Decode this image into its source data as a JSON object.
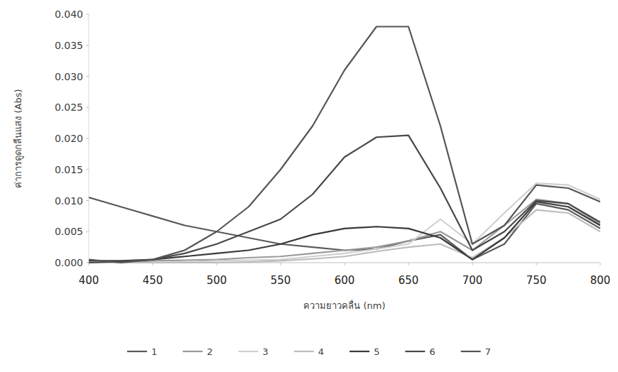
{
  "chart_data": {
    "type": "line",
    "x_label": "ความยาวคลื่น (nm)",
    "y_label": "ค่าการดูดกลืนแสง (Abs)",
    "x": [
      400,
      425,
      450,
      475,
      500,
      525,
      550,
      575,
      600,
      625,
      650,
      675,
      700,
      725,
      750,
      775,
      800
    ],
    "xlim": [
      400,
      800
    ],
    "xticks": [
      400,
      450,
      500,
      550,
      600,
      650,
      700,
      750,
      800
    ],
    "ylim": [
      0,
      0.04
    ],
    "yticks": [
      {
        "value": 0,
        "label": "0.000"
      },
      {
        "value": 0.005,
        "label": "0.005"
      },
      {
        "value": 0.01,
        "label": "0.010"
      },
      {
        "value": 0.015,
        "label": "0.015"
      },
      {
        "value": 0.02,
        "label": "0.020"
      },
      {
        "value": 0.025,
        "label": "0.025"
      },
      {
        "value": 0.03,
        "label": "0.030"
      },
      {
        "value": 0.035,
        "label": "0.035"
      },
      {
        "value": 0.04,
        "label": "0.040"
      }
    ],
    "grid": false,
    "legend": "bottom",
    "series": [
      {
        "name": "1",
        "color": "#5a5a5a",
        "values": [
          0.0105,
          0.009,
          0.0075,
          0.006,
          0.005,
          0.004,
          0.003,
          0.0025,
          0.002,
          0.0022,
          0.0035,
          0.0045,
          0.0005,
          0.003,
          0.0095,
          0.0085,
          0.0055
        ]
      },
      {
        "name": "2",
        "color": "#9a9a9a",
        "values": [
          0,
          0,
          0.0003,
          0.0004,
          0.0005,
          0.0008,
          0.001,
          0.0015,
          0.002,
          0.0025,
          0.0035,
          0.005,
          0.002,
          0.006,
          0.0102,
          0.0095,
          0.0062
        ]
      },
      {
        "name": "3",
        "color": "#cfcfcf",
        "values": [
          0,
          0,
          0,
          0.0001,
          0.0003,
          0.0004,
          0.0005,
          0.001,
          0.0015,
          0.0022,
          0.003,
          0.007,
          0.003,
          0.008,
          0.0128,
          0.0125,
          0.0102
        ]
      },
      {
        "name": "4",
        "color": "#bdbdbd",
        "values": [
          0,
          0,
          0,
          0,
          0,
          0.0001,
          0.0003,
          0.0006,
          0.001,
          0.0018,
          0.0025,
          0.003,
          0.0008,
          0.004,
          0.0085,
          0.008,
          0.005
        ]
      },
      {
        "name": "5",
        "color": "#3a3a3a",
        "values": [
          0.0003,
          0.0003,
          0.0005,
          0.001,
          0.0015,
          0.002,
          0.003,
          0.0045,
          0.0055,
          0.0058,
          0.0055,
          0.004,
          0.0005,
          0.004,
          0.0098,
          0.009,
          0.006
        ]
      },
      {
        "name": "6",
        "color": "#484848",
        "values": [
          0,
          0.0002,
          0.0005,
          0.0015,
          0.003,
          0.005,
          0.007,
          0.011,
          0.017,
          0.0202,
          0.0205,
          0.012,
          0.002,
          0.005,
          0.01,
          0.0095,
          0.0065
        ]
      },
      {
        "name": "7",
        "color": "#555555",
        "values": [
          0.0005,
          0,
          0.0005,
          0.002,
          0.005,
          0.009,
          0.015,
          0.022,
          0.031,
          0.038,
          0.038,
          0.022,
          0.003,
          0.006,
          0.0125,
          0.012,
          0.0098
        ]
      }
    ]
  }
}
